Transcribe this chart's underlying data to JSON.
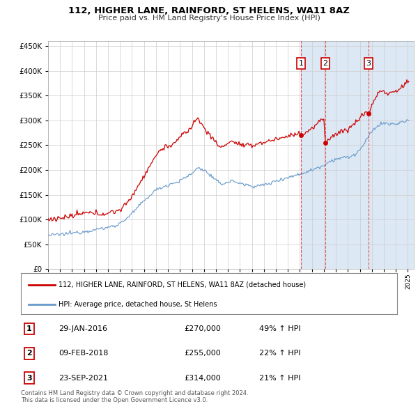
{
  "title": "112, HIGHER LANE, RAINFORD, ST HELENS, WA11 8AZ",
  "subtitle": "Price paid vs. HM Land Registry's House Price Index (HPI)",
  "background_color": "#ffffff",
  "plot_bg_color": "#ffffff",
  "grid_color": "#cccccc",
  "line1_color": "#cc0000",
  "line2_color": "#6699cc",
  "vline_color": "#dd4444",
  "shade_color": "#dde8f5",
  "legend1_label": "112, HIGHER LANE, RAINFORD, ST HELENS, WA11 8AZ (detached house)",
  "legend2_label": "HPI: Average price, detached house, St Helens",
  "transactions": [
    {
      "num": 1,
      "date": "29-JAN-2016",
      "price": "£270,000",
      "hpi": "49% ↑ HPI",
      "x": 2016.08,
      "pp": 270000
    },
    {
      "num": 2,
      "date": "09-FEB-2018",
      "price": "£255,000",
      "hpi": "22% ↑ HPI",
      "x": 2018.12,
      "pp": 255000
    },
    {
      "num": 3,
      "date": "23-SEP-2021",
      "price": "£314,000",
      "hpi": "21% ↑ HPI",
      "x": 2021.73,
      "pp": 314000
    }
  ],
  "copyright": "Contains HM Land Registry data © Crown copyright and database right 2024.\nThis data is licensed under the Open Government Licence v3.0.",
  "ylim": [
    0,
    460000
  ],
  "yticks": [
    0,
    50000,
    100000,
    150000,
    200000,
    250000,
    300000,
    350000,
    400000,
    450000
  ],
  "xlim_start": 1995.0,
  "xlim_end": 2025.5,
  "xtick_years": [
    1995,
    1996,
    1997,
    1998,
    1999,
    2000,
    2001,
    2002,
    2003,
    2004,
    2005,
    2006,
    2007,
    2008,
    2009,
    2010,
    2011,
    2012,
    2013,
    2014,
    2015,
    2016,
    2017,
    2018,
    2019,
    2020,
    2021,
    2022,
    2023,
    2024,
    2025
  ]
}
